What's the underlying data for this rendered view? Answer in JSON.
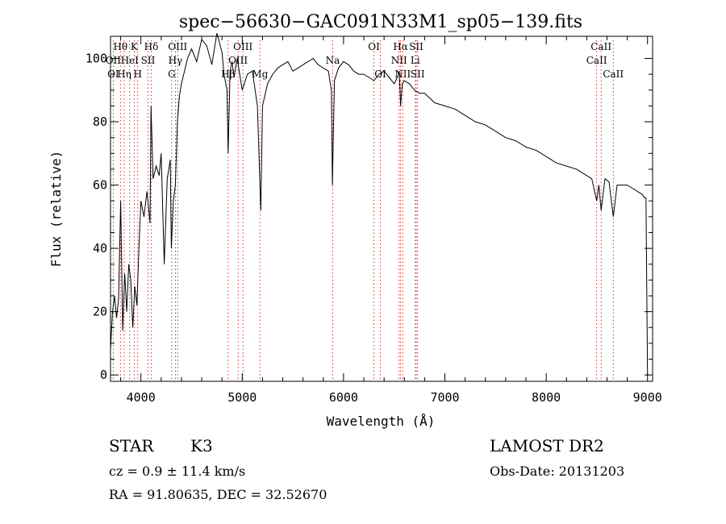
{
  "chart_data": {
    "type": "line",
    "title": "spec−56630−GAC091N33M1_sp05−139.fits",
    "xlabel": "Wavelength (Å)",
    "ylabel": "Flux (relative)",
    "xlim": [
      3700,
      9050
    ],
    "ylim": [
      -2,
      107
    ],
    "x_ticks": [
      4000,
      5000,
      6000,
      7000,
      8000,
      9000
    ],
    "y_ticks": [
      0,
      20,
      40,
      60,
      80,
      100
    ],
    "grid": false,
    "legend": "none",
    "line_color": "#000000",
    "marker_color": "#cc0000",
    "series": [
      {
        "x": [
          3700,
          3720,
          3740,
          3760,
          3780,
          3800,
          3820,
          3840,
          3860,
          3880,
          3900,
          3920,
          3940,
          3960,
          3980,
          4000,
          4030,
          4060,
          4090,
          4100,
          4120,
          4150,
          4180,
          4200,
          4230,
          4260,
          4290,
          4300,
          4320,
          4340,
          4360,
          4380,
          4400,
          4430,
          4460,
          4500,
          4550,
          4600,
          4650,
          4700,
          4750,
          4800,
          4820,
          4850,
          4861,
          4880,
          4900,
          4920,
          4950,
          5000,
          5050,
          5100,
          5150,
          5175,
          5183,
          5200,
          5250,
          5300,
          5350,
          5400,
          5450,
          5500,
          5550,
          5600,
          5650,
          5700,
          5750,
          5800,
          5850,
          5880,
          5890,
          5896,
          5910,
          5950,
          6000,
          6050,
          6100,
          6150,
          6200,
          6250,
          6300,
          6350,
          6400,
          6450,
          6500,
          6530,
          6550,
          6563,
          6580,
          6600,
          6650,
          6700,
          6750,
          6800,
          6900,
          7000,
          7100,
          7200,
          7300,
          7400,
          7500,
          7600,
          7700,
          7800,
          7900,
          8000,
          8100,
          8200,
          8300,
          8400,
          8450,
          8498,
          8520,
          8542,
          8580,
          8620,
          8662,
          8700,
          8750,
          8800,
          8850,
          8900,
          8950,
          8970,
          8985,
          9000
        ],
        "y": [
          8,
          20,
          25,
          18,
          24,
          55,
          14,
          32,
          20,
          35,
          30,
          15,
          28,
          22,
          40,
          55,
          50,
          58,
          48,
          85,
          62,
          66,
          63,
          70,
          35,
          62,
          68,
          40,
          55,
          60,
          80,
          88,
          92,
          96,
          100,
          103,
          99,
          106,
          104,
          98,
          108,
          102,
          95,
          90,
          70,
          96,
          99,
          94,
          100,
          90,
          95,
          96,
          85,
          60,
          52,
          85,
          92,
          95,
          97,
          98,
          99,
          96,
          97,
          98,
          99,
          100,
          98,
          97,
          96,
          90,
          60,
          70,
          93,
          97,
          99,
          98,
          96,
          95,
          95,
          94,
          93,
          95,
          96,
          94,
          92,
          94,
          96,
          85,
          92,
          93,
          92,
          90,
          89,
          89,
          86,
          85,
          84,
          82,
          80,
          79,
          77,
          75,
          74,
          72,
          71,
          69,
          67,
          66,
          65,
          63,
          62,
          55,
          60,
          52,
          62,
          61,
          50,
          60,
          60,
          60,
          59,
          58,
          57,
          56,
          56,
          0
        ]
      }
    ],
    "line_labels": [
      {
        "text": "Hθ",
        "x": 3798,
        "row": 1
      },
      {
        "text": "K",
        "x": 3934,
        "row": 1
      },
      {
        "text": "Hδ",
        "x": 4102,
        "row": 1
      },
      {
        "text": "OIII",
        "x": 4363,
        "row": 1
      },
      {
        "text": "OIII",
        "x": 5007,
        "row": 1
      },
      {
        "text": "OI",
        "x": 6300,
        "row": 1
      },
      {
        "text": "Hα",
        "x": 6563,
        "row": 1
      },
      {
        "text": "SII",
        "x": 6717,
        "row": 1
      },
      {
        "text": "CaII",
        "x": 8542,
        "row": 1
      },
      {
        "text": "OII",
        "x": 3727,
        "row": 2
      },
      {
        "text": "HeI",
        "x": 3889,
        "row": 2
      },
      {
        "text": "SII",
        "x": 4070,
        "row": 2
      },
      {
        "text": "Hγ",
        "x": 4340,
        "row": 2
      },
      {
        "text": "OIII",
        "x": 4959,
        "row": 2
      },
      {
        "text": "Na",
        "x": 5893,
        "row": 2
      },
      {
        "text": "NII",
        "x": 6548,
        "row": 2
      },
      {
        "text": "Li",
        "x": 6708,
        "row": 2
      },
      {
        "text": "CaII",
        "x": 8498,
        "row": 2
      },
      {
        "text": "OI",
        "x": 3727,
        "row": 3
      },
      {
        "text": "Hη",
        "x": 3835,
        "row": 3
      },
      {
        "text": "H",
        "x": 3969,
        "row": 3
      },
      {
        "text": "G",
        "x": 4304,
        "row": 3
      },
      {
        "text": "Hβ",
        "x": 4861,
        "row": 3
      },
      {
        "text": "Mg",
        "x": 5175,
        "row": 3
      },
      {
        "text": "OI",
        "x": 6363,
        "row": 3
      },
      {
        "text": "NII",
        "x": 6584,
        "row": 3
      },
      {
        "text": "SII",
        "x": 6731,
        "row": 3
      },
      {
        "text": "CaII",
        "x": 8662,
        "row": 3
      }
    ],
    "marker_lines": [
      3727,
      3798,
      3835,
      3889,
      3934,
      3969,
      4070,
      4102,
      4304,
      4340,
      4363,
      4861,
      4959,
      5007,
      5175,
      5893,
      6300,
      6363,
      6548,
      6563,
      6584,
      6708,
      6717,
      6731,
      8498,
      8542,
      8662
    ]
  },
  "info": {
    "object_class": "STAR",
    "subclass": "K3",
    "survey": "LAMOST DR2",
    "cz": "cz = 0.9 ± 11.4 km/s",
    "obs_date": "Obs-Date: 20131203",
    "radec": "RA =  91.80635, DEC =  32.52670"
  }
}
